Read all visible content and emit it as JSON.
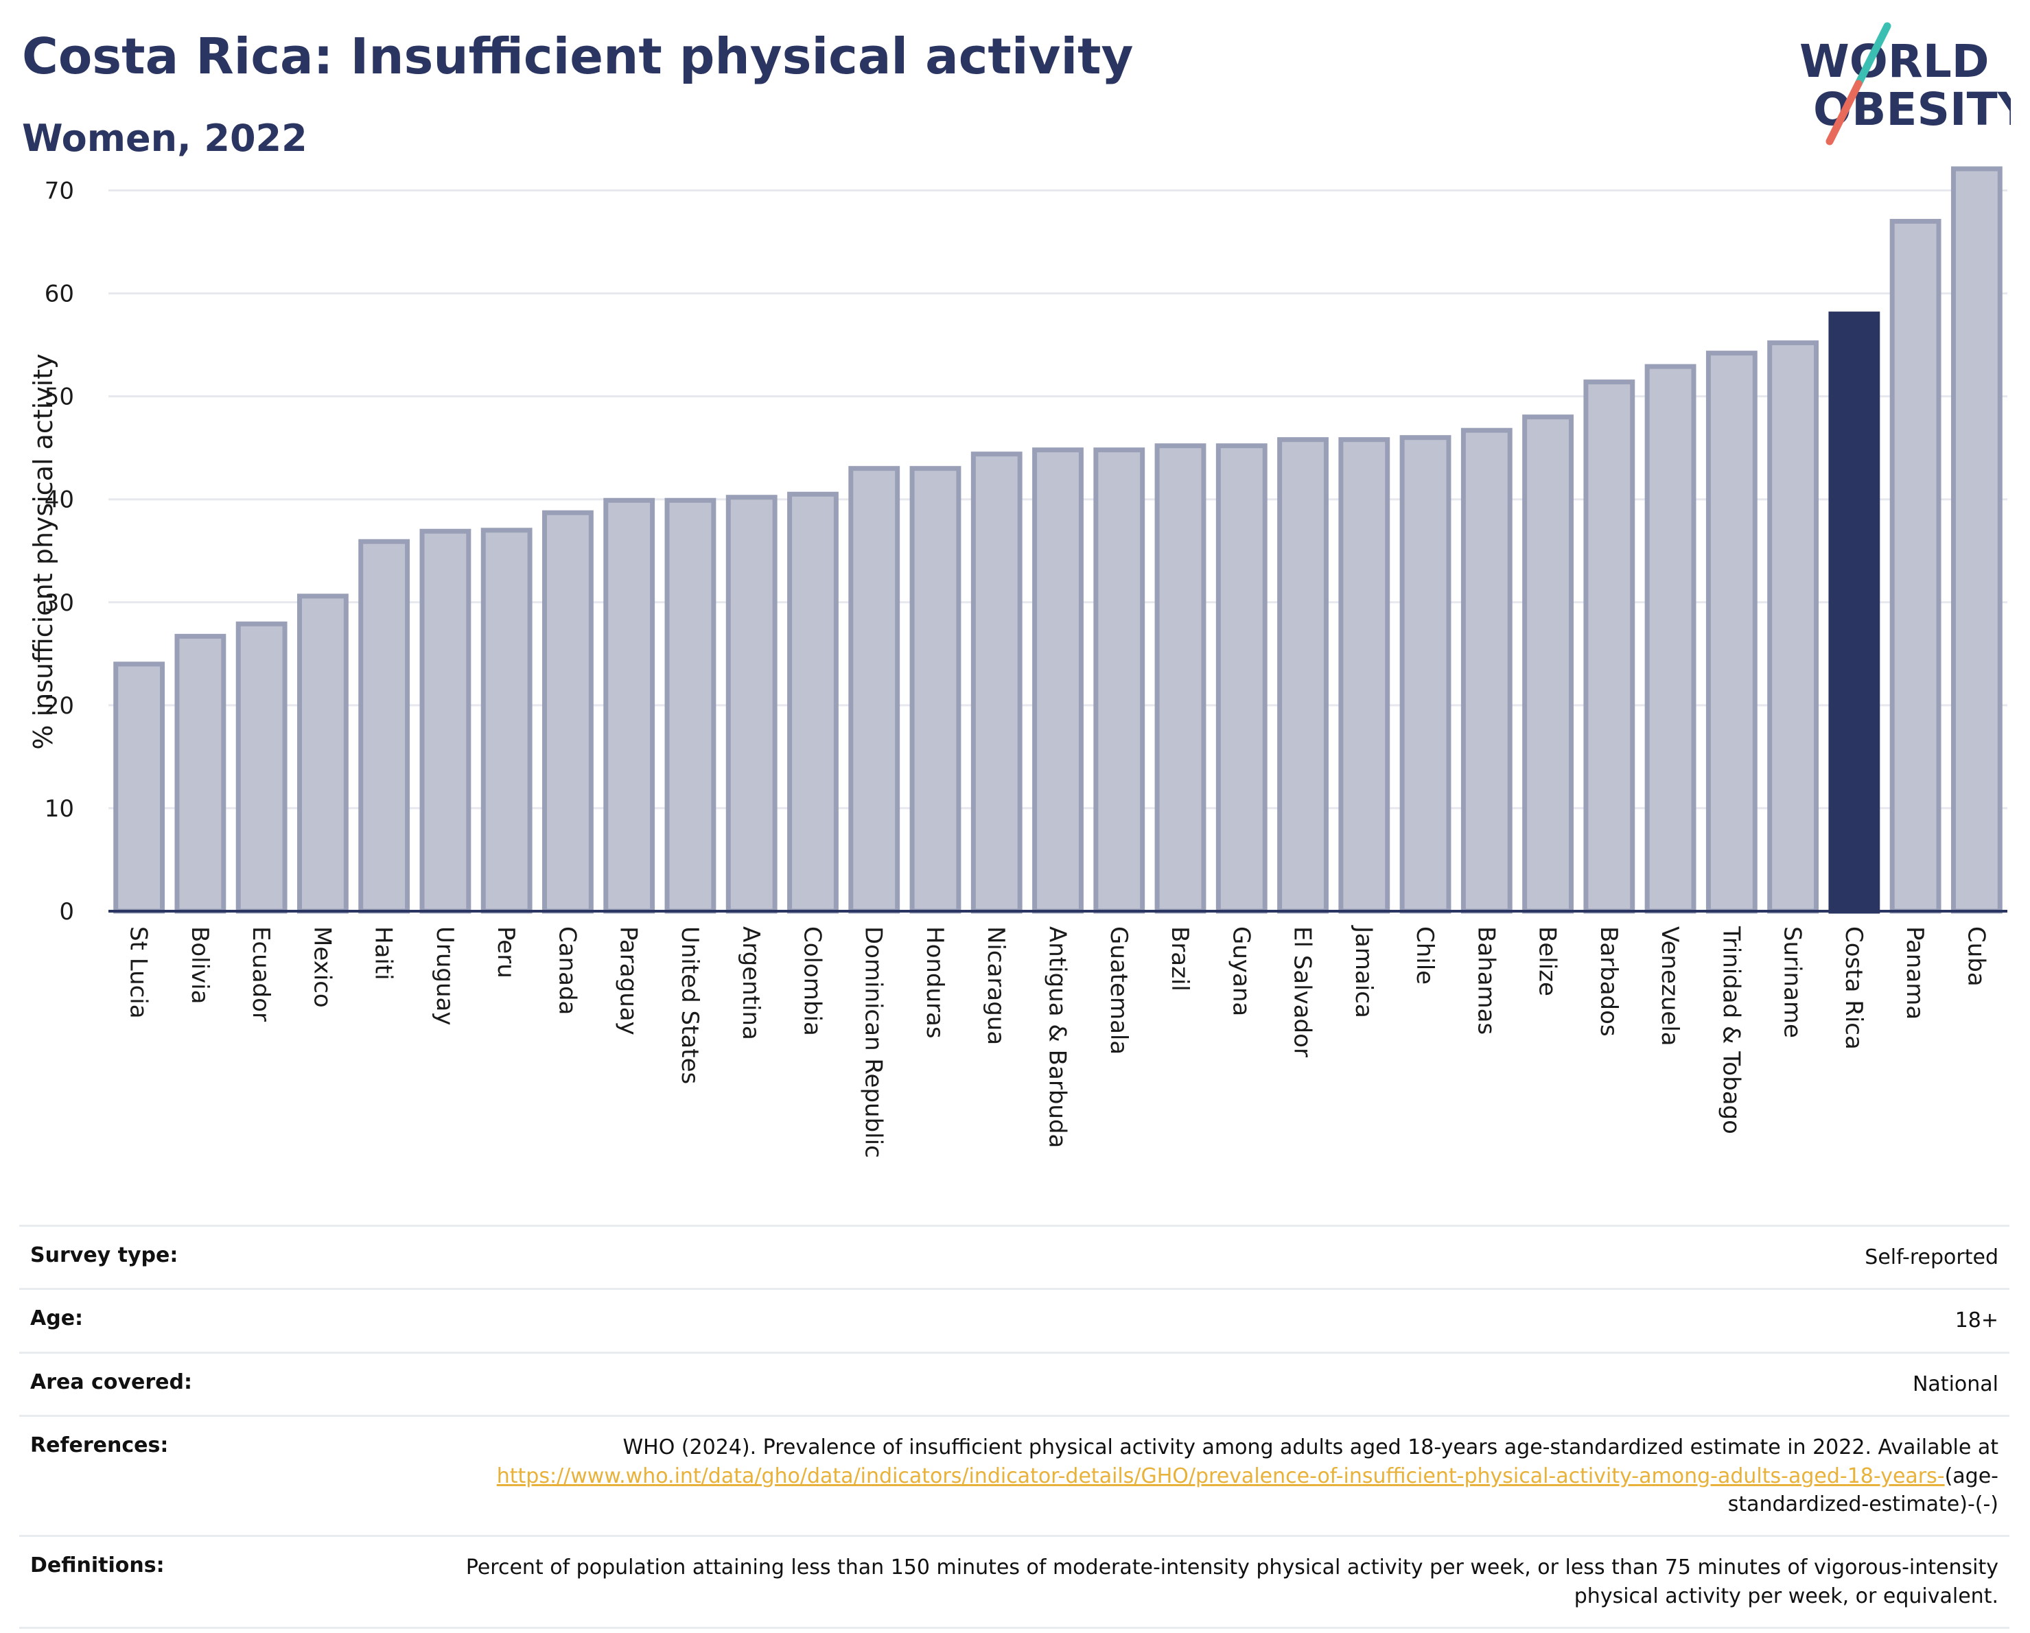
{
  "header": {
    "title": "Costa Rica: Insufficient physical activity",
    "subtitle": "Women, 2022"
  },
  "logo": {
    "line1": "WORLD",
    "line2": "OBESITY",
    "text_color": "#2b3561",
    "slash_color_top": "#3bbfb2",
    "slash_color_bottom": "#e86a5a"
  },
  "colors": {
    "bar_fill": "#bfc2d0",
    "bar_stroke": "#9a9fb8",
    "highlight_fill": "#2b3561",
    "grid": "#e6e8ee",
    "axis": "#2b3561"
  },
  "chart_data": {
    "type": "bar",
    "ylabel": "% insufficient physical activity",
    "ylim": [
      0,
      72.5
    ],
    "yticks": [
      0,
      10,
      20,
      30,
      40,
      50,
      60,
      70
    ],
    "grid": true,
    "highlight": "Costa Rica",
    "categories": [
      "St Lucia",
      "Bolivia",
      "Ecuador",
      "Mexico",
      "Haiti",
      "Uruguay",
      "Peru",
      "Canada",
      "Paraguay",
      "United States",
      "Argentina",
      "Colombia",
      "Dominican Republic",
      "Honduras",
      "Nicaragua",
      "Antigua & Barbuda",
      "Guatemala",
      "Brazil",
      "Guyana",
      "El Salvador",
      "Jamaica",
      "Chile",
      "Bahamas",
      "Belize",
      "Barbados",
      "Venezuela",
      "Trinidad & Tobago",
      "Suriname",
      "Costa Rica",
      "Panama",
      "Cuba"
    ],
    "values": [
      24.0,
      26.7,
      27.9,
      30.6,
      35.9,
      36.9,
      37.0,
      38.7,
      39.9,
      39.9,
      40.2,
      40.5,
      43.0,
      43.0,
      44.4,
      44.8,
      44.8,
      45.2,
      45.2,
      45.8,
      45.8,
      46.0,
      46.7,
      48.0,
      51.4,
      52.9,
      54.2,
      55.2,
      58.0,
      67.0,
      72.1
    ]
  },
  "meta": {
    "rows": [
      {
        "key": "Survey type:",
        "value": "Self-reported"
      },
      {
        "key": "Age:",
        "value": "18+"
      },
      {
        "key": "Area covered:",
        "value": "National"
      }
    ],
    "references": {
      "key": "References:",
      "text": "WHO (2024). Prevalence of insufficient physical activity among adults aged 18-years age-standardized estimate in 2022. Available at ",
      "link": "https://www.who.int/data/gho/data/indicators/indicator-details/GHO/prevalence-of-insufficient-physical-activity-among-adults-aged-18-years-",
      "suffix": "(age-standardized-estimate)-(-)"
    },
    "definitions": {
      "key": "Definitions:",
      "value": "Percent of population attaining less than 150 minutes of moderate-intensity physical activity per week, or less than 75 minutes of vigorous-intensity physical activity per week, or equivalent."
    }
  }
}
